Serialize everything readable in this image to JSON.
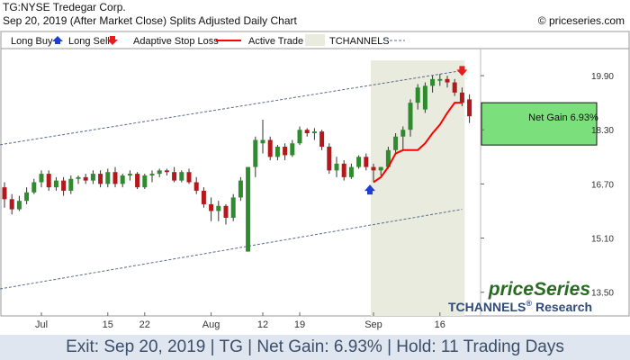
{
  "header": {
    "ticker_line": "TG:NYSE Tredegar Corp.",
    "date_line": "Sep 20, 2019 (After Market Close)  Splits Adjusted Daily Chart",
    "credit": "© priceseries.com"
  },
  "legend": {
    "long_buy": "Long Buy",
    "long_sell": "Long Sell",
    "adaptive_stop": "Adaptive Stop Loss",
    "active_trade": "Active Trade",
    "tchannels": "TCHANNELS"
  },
  "colors": {
    "up": "#2e8b2e",
    "down": "#b3191c",
    "stop": "#ff0000",
    "buy_arrow": "#1e3fd6",
    "sell_arrow": "#e81c1c",
    "active_trade": "#e9ebdf",
    "gain_box": "#7be07b",
    "channel": "#5a6b86",
    "footer_text": "#3c4f6a"
  },
  "net_gain_label": "Net Gain 6.93%",
  "brand": {
    "name": "priceSeries",
    "tchannels": "TCHANNELS",
    "reg": "®",
    "research": "Research"
  },
  "footer": {
    "text": "Exit: Sep 20, 2019 | TG | Net Gain: 6.93% | Hold: 11 Trading Days"
  },
  "chart_data": {
    "type": "candlestick",
    "y_ticks": [
      13.5,
      15.1,
      16.7,
      18.3,
      19.9
    ],
    "y_tick_labels": [
      "13.50",
      "15.10",
      "16.70",
      "18.30",
      "19.90"
    ],
    "ylim": [
      12.8,
      20.7
    ],
    "x_tick_labels": [
      {
        "label": "Jul",
        "index": 5
      },
      {
        "label": "15",
        "index": 14
      },
      {
        "label": "22",
        "index": 19
      },
      {
        "label": "Aug",
        "index": 28
      },
      {
        "label": "12",
        "index": 35
      },
      {
        "label": "19",
        "index": 40
      },
      {
        "label": "Sep",
        "index": 50
      },
      {
        "label": "16",
        "index": 59
      }
    ],
    "candles": [
      {
        "o": 16.6,
        "h": 16.75,
        "l": 16.0,
        "c": 16.25
      },
      {
        "o": 16.25,
        "h": 16.4,
        "l": 15.8,
        "c": 15.95
      },
      {
        "o": 15.95,
        "h": 16.35,
        "l": 15.9,
        "c": 16.2
      },
      {
        "o": 16.2,
        "h": 16.6,
        "l": 16.1,
        "c": 16.45
      },
      {
        "o": 16.45,
        "h": 16.85,
        "l": 16.4,
        "c": 16.75
      },
      {
        "o": 16.75,
        "h": 17.1,
        "l": 16.6,
        "c": 17.0
      },
      {
        "o": 17.0,
        "h": 17.1,
        "l": 16.5,
        "c": 16.6
      },
      {
        "o": 16.6,
        "h": 16.9,
        "l": 16.5,
        "c": 16.8
      },
      {
        "o": 16.8,
        "h": 16.9,
        "l": 16.35,
        "c": 16.5
      },
      {
        "o": 16.5,
        "h": 16.95,
        "l": 16.4,
        "c": 16.85
      },
      {
        "o": 16.85,
        "h": 16.95,
        "l": 16.7,
        "c": 16.9
      },
      {
        "o": 16.9,
        "h": 17.0,
        "l": 16.7,
        "c": 16.8
      },
      {
        "o": 16.8,
        "h": 17.1,
        "l": 16.7,
        "c": 17.0
      },
      {
        "o": 17.0,
        "h": 17.1,
        "l": 16.6,
        "c": 16.7
      },
      {
        "o": 16.7,
        "h": 17.15,
        "l": 16.6,
        "c": 17.05
      },
      {
        "o": 17.05,
        "h": 17.2,
        "l": 16.6,
        "c": 16.7
      },
      {
        "o": 16.7,
        "h": 17.0,
        "l": 16.6,
        "c": 16.95
      },
      {
        "o": 16.95,
        "h": 17.1,
        "l": 16.8,
        "c": 17.0
      },
      {
        "o": 17.0,
        "h": 17.05,
        "l": 16.55,
        "c": 16.6
      },
      {
        "o": 16.6,
        "h": 17.0,
        "l": 16.55,
        "c": 16.95
      },
      {
        "o": 16.95,
        "h": 17.1,
        "l": 16.75,
        "c": 17.0
      },
      {
        "o": 17.0,
        "h": 17.15,
        "l": 16.9,
        "c": 17.1
      },
      {
        "o": 17.1,
        "h": 17.15,
        "l": 16.95,
        "c": 17.05
      },
      {
        "o": 17.05,
        "h": 17.2,
        "l": 16.75,
        "c": 16.8
      },
      {
        "o": 16.8,
        "h": 17.1,
        "l": 16.75,
        "c": 17.05
      },
      {
        "o": 17.05,
        "h": 17.15,
        "l": 16.7,
        "c": 16.75
      },
      {
        "o": 16.75,
        "h": 16.9,
        "l": 16.4,
        "c": 16.5
      },
      {
        "o": 16.5,
        "h": 16.6,
        "l": 16.0,
        "c": 16.1
      },
      {
        "o": 16.1,
        "h": 16.3,
        "l": 15.6,
        "c": 15.9
      },
      {
        "o": 15.9,
        "h": 16.2,
        "l": 15.6,
        "c": 16.05
      },
      {
        "o": 16.05,
        "h": 16.1,
        "l": 15.5,
        "c": 15.7
      },
      {
        "o": 15.7,
        "h": 16.4,
        "l": 15.6,
        "c": 16.3
      },
      {
        "o": 16.3,
        "h": 16.9,
        "l": 16.2,
        "c": 16.8
      },
      {
        "o": 14.7,
        "h": 17.2,
        "l": 14.7,
        "c": 17.2
      },
      {
        "o": 17.2,
        "h": 18.1,
        "l": 16.9,
        "c": 18.0
      },
      {
        "o": 17.9,
        "h": 18.6,
        "l": 17.6,
        "c": 18.0
      },
      {
        "o": 18.0,
        "h": 18.1,
        "l": 17.4,
        "c": 17.5
      },
      {
        "o": 17.5,
        "h": 17.85,
        "l": 17.4,
        "c": 17.8
      },
      {
        "o": 17.8,
        "h": 17.9,
        "l": 17.4,
        "c": 17.55
      },
      {
        "o": 17.55,
        "h": 18.0,
        "l": 17.5,
        "c": 17.9
      },
      {
        "o": 17.9,
        "h": 18.4,
        "l": 17.85,
        "c": 18.3
      },
      {
        "o": 18.3,
        "h": 18.35,
        "l": 18.1,
        "c": 18.2
      },
      {
        "o": 18.2,
        "h": 18.35,
        "l": 18.0,
        "c": 18.25
      },
      {
        "o": 18.25,
        "h": 18.3,
        "l": 17.7,
        "c": 17.8
      },
      {
        "o": 17.8,
        "h": 17.9,
        "l": 17.0,
        "c": 17.1
      },
      {
        "o": 17.1,
        "h": 17.5,
        "l": 16.9,
        "c": 17.3
      },
      {
        "o": 17.3,
        "h": 17.4,
        "l": 16.8,
        "c": 16.9
      },
      {
        "o": 16.9,
        "h": 17.3,
        "l": 16.85,
        "c": 17.2
      },
      {
        "o": 17.2,
        "h": 17.55,
        "l": 17.15,
        "c": 17.5
      },
      {
        "o": 17.5,
        "h": 17.6,
        "l": 17.1,
        "c": 17.2
      },
      {
        "o": 17.2,
        "h": 17.3,
        "l": 16.75,
        "c": 17.1
      },
      {
        "o": 17.1,
        "h": 17.2,
        "l": 16.95,
        "c": 17.2
      },
      {
        "o": 17.2,
        "h": 17.8,
        "l": 17.15,
        "c": 17.7
      },
      {
        "o": 17.7,
        "h": 18.2,
        "l": 17.6,
        "c": 18.1
      },
      {
        "o": 18.1,
        "h": 18.4,
        "l": 17.7,
        "c": 18.3
      },
      {
        "o": 18.3,
        "h": 19.2,
        "l": 18.1,
        "c": 19.1
      },
      {
        "o": 19.1,
        "h": 19.65,
        "l": 18.9,
        "c": 19.55
      },
      {
        "o": 18.9,
        "h": 19.7,
        "l": 18.8,
        "c": 19.6
      },
      {
        "o": 19.6,
        "h": 19.9,
        "l": 19.4,
        "c": 19.8
      },
      {
        "o": 19.75,
        "h": 19.95,
        "l": 19.6,
        "c": 19.8
      },
      {
        "o": 19.8,
        "h": 19.9,
        "l": 19.55,
        "c": 19.7
      },
      {
        "o": 19.7,
        "h": 19.8,
        "l": 19.3,
        "c": 19.4
      },
      {
        "o": 19.4,
        "h": 19.55,
        "l": 19.0,
        "c": 19.1
      },
      {
        "o": 19.2,
        "h": 19.35,
        "l": 18.5,
        "c": 18.7
      }
    ],
    "stop_loss": {
      "start_index": 50,
      "values": [
        16.75,
        16.9,
        17.2,
        17.6,
        17.7,
        17.7,
        17.7,
        17.9,
        18.2,
        18.45,
        18.8,
        19.1,
        19.1
      ]
    },
    "active_trade": {
      "start_index": 50,
      "end_index": 62
    },
    "buy_signal": {
      "index": 50,
      "price": 16.52
    },
    "sell_signal": {
      "index": 62,
      "price": 20.05
    },
    "channel_upper": [
      {
        "index": 0,
        "price": 17.88
      },
      {
        "index": 62,
        "price": 20.05
      }
    ],
    "channel_lower": [
      {
        "index": 0,
        "price": 13.62
      },
      {
        "index": 62,
        "price": 15.95
      }
    ],
    "gain_box": {
      "bottom": 17.85,
      "top": 19.1
    }
  }
}
